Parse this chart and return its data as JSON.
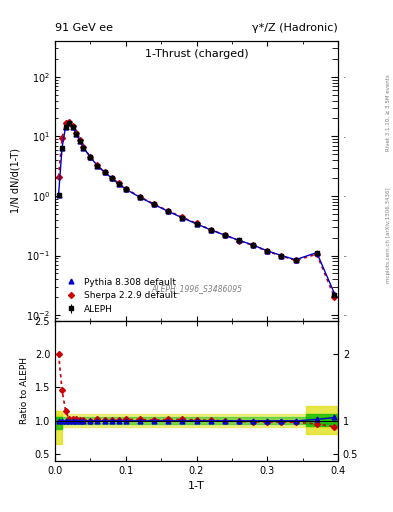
{
  "title_left": "91 GeV ee",
  "title_right": "γ*/Z (Hadronic)",
  "plot_title": "1-Thrust (charged)",
  "xlabel": "1-T",
  "ylabel_main": "1/N dN/d(1-T)",
  "ylabel_ratio": "Ratio to ALEPH",
  "right_label_top": "Rivet 3.1.10, ≥ 3.5M events",
  "right_label_bottom": "mcplots.cern.ch [arXiv:1306.3436]",
  "watermark": "ALEPH_1996_S3486095",
  "x_data": [
    0.005,
    0.01,
    0.015,
    0.02,
    0.025,
    0.03,
    0.035,
    0.04,
    0.05,
    0.06,
    0.07,
    0.08,
    0.09,
    0.1,
    0.12,
    0.14,
    0.16,
    0.18,
    0.2,
    0.22,
    0.24,
    0.26,
    0.28,
    0.3,
    0.32,
    0.34,
    0.37,
    0.395
  ],
  "aleph_y": [
    1.05,
    6.5,
    14.5,
    17.0,
    14.5,
    11.0,
    8.5,
    6.5,
    4.5,
    3.2,
    2.5,
    2.0,
    1.6,
    1.3,
    0.95,
    0.72,
    0.55,
    0.43,
    0.34,
    0.27,
    0.22,
    0.18,
    0.15,
    0.12,
    0.1,
    0.085,
    0.11,
    0.022
  ],
  "aleph_yerr": [
    0.08,
    0.3,
    0.4,
    0.4,
    0.35,
    0.25,
    0.2,
    0.15,
    0.1,
    0.08,
    0.06,
    0.05,
    0.04,
    0.03,
    0.025,
    0.018,
    0.014,
    0.011,
    0.009,
    0.007,
    0.006,
    0.005,
    0.004,
    0.003,
    0.003,
    0.002,
    0.004,
    0.001
  ],
  "pythia_y": [
    1.05,
    6.5,
    14.5,
    17.0,
    14.5,
    11.0,
    8.5,
    6.5,
    4.5,
    3.2,
    2.5,
    2.0,
    1.6,
    1.3,
    0.95,
    0.72,
    0.55,
    0.43,
    0.34,
    0.27,
    0.22,
    0.18,
    0.15,
    0.12,
    0.1,
    0.085,
    0.112,
    0.023
  ],
  "sherpa_y": [
    2.1,
    9.5,
    16.5,
    17.5,
    14.8,
    11.2,
    8.6,
    6.6,
    4.5,
    3.25,
    2.52,
    2.02,
    1.62,
    1.32,
    0.97,
    0.73,
    0.56,
    0.44,
    0.345,
    0.272,
    0.22,
    0.178,
    0.148,
    0.118,
    0.098,
    0.083,
    0.105,
    0.02
  ],
  "pythia_ratio": [
    1.0,
    1.0,
    1.0,
    1.0,
    1.0,
    1.0,
    1.0,
    1.0,
    1.0,
    1.0,
    1.0,
    1.0,
    1.0,
    1.0,
    1.0,
    1.0,
    1.0,
    1.0,
    1.0,
    1.0,
    1.0,
    1.0,
    1.0,
    1.0,
    1.0,
    1.0,
    1.02,
    1.05
  ],
  "sherpa_ratio": [
    2.0,
    1.46,
    1.14,
    1.03,
    1.02,
    1.02,
    1.01,
    1.01,
    1.0,
    1.02,
    1.01,
    1.01,
    1.01,
    1.02,
    1.02,
    1.01,
    1.02,
    1.02,
    1.015,
    1.007,
    1.0,
    0.99,
    0.987,
    0.983,
    0.98,
    0.976,
    0.955,
    0.91
  ],
  "aleph_color": "#000000",
  "pythia_color": "#0000cc",
  "sherpa_color": "#cc0000",
  "green_band_color": "#00bb00",
  "yellow_band_color": "#dddd00",
  "ylim_main": [
    0.008,
    400
  ],
  "xlim": [
    0.0,
    0.4
  ],
  "ratio_ylim": [
    0.4,
    2.5
  ],
  "ratio_yticks": [
    0.5,
    1.0,
    2.0
  ],
  "ratio_yticklabels": [
    "0.5",
    "1",
    "2"
  ]
}
